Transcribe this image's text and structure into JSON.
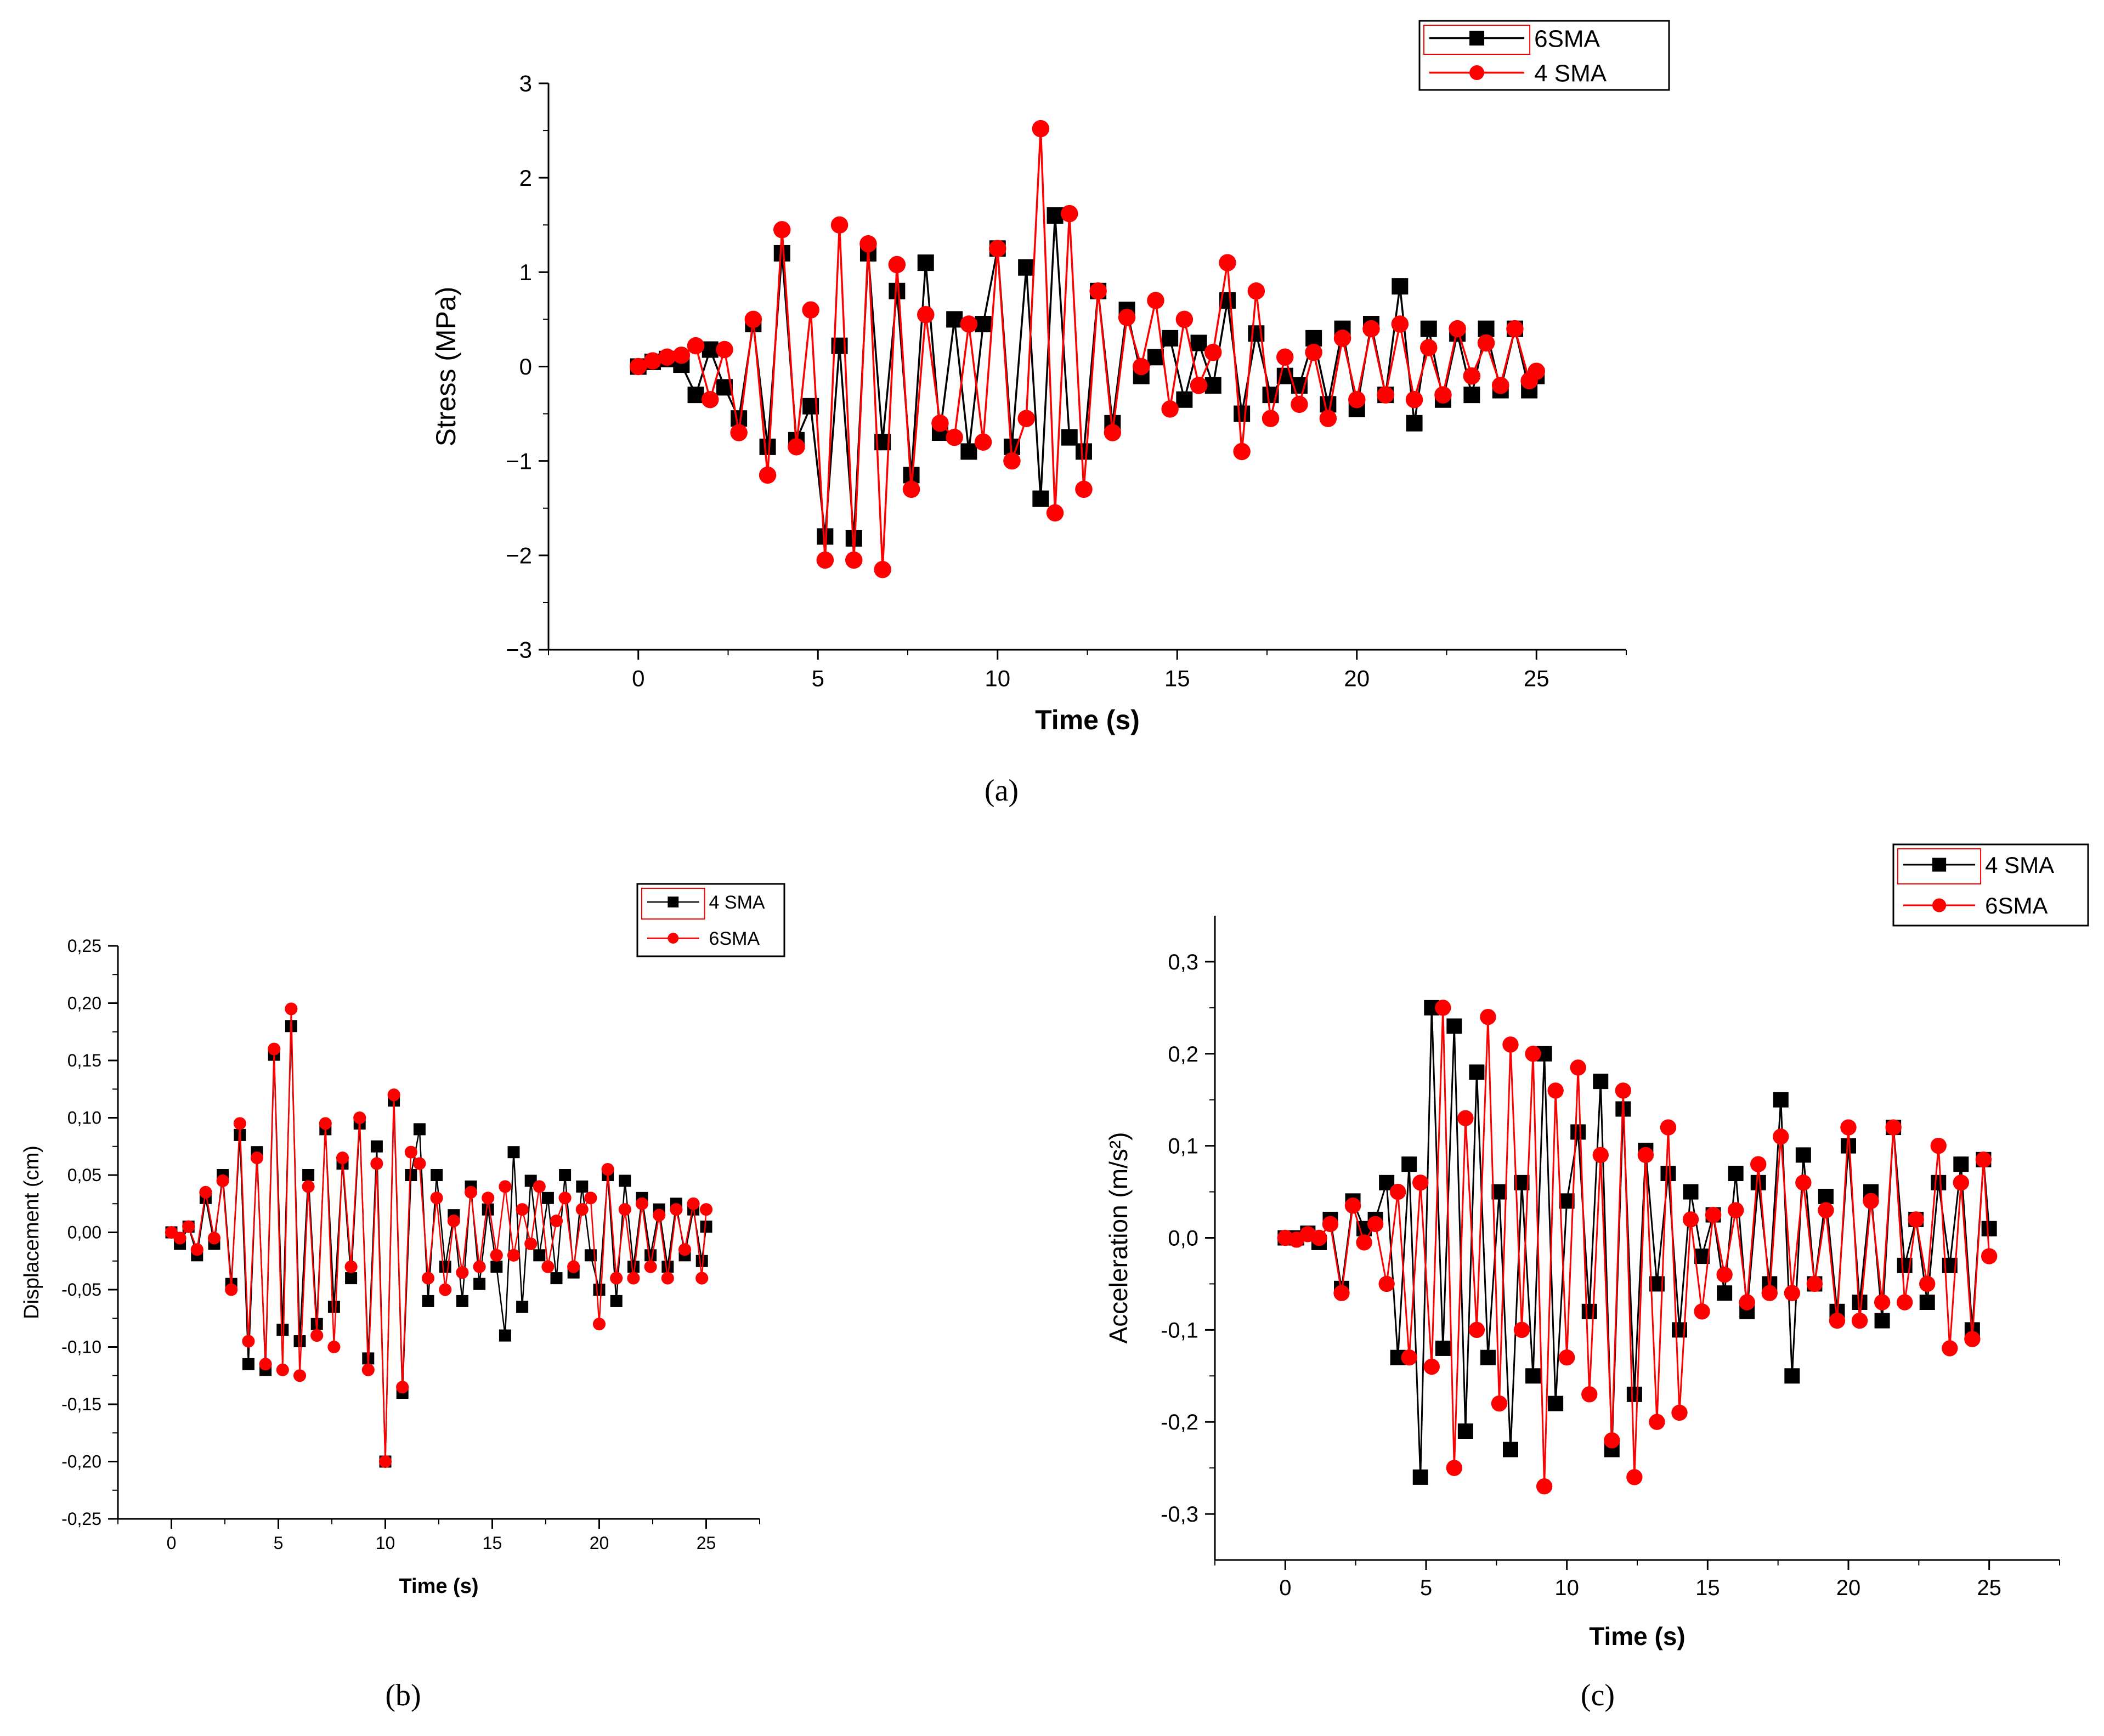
{
  "colors": {
    "series_black": "#000000",
    "series_red": "#ff0000",
    "axis": "#000000",
    "legend_border": "#000000"
  },
  "chart_data": [
    {
      "id": "a",
      "type": "line",
      "panel_label": "(a)",
      "xlabel": "Time (s)",
      "ylabel": "Stress (MPa)",
      "xlim": [
        -2.5,
        27.5
      ],
      "ylim": [
        -3,
        3
      ],
      "xticks": [
        0,
        5,
        10,
        15,
        20,
        25
      ],
      "yticks": [
        -3,
        -2,
        -1,
        0,
        1,
        2,
        3
      ],
      "xtick_labels": [
        "0",
        "5",
        "10",
        "15",
        "20",
        "25"
      ],
      "ytick_labels": [
        "−3",
        "−2",
        "−1",
        "0",
        "1",
        "2",
        "3"
      ],
      "legend": [
        "6SMA",
        "4 SMA"
      ],
      "series": [
        {
          "name": "6SMA",
          "marker": "square",
          "color": "#000000",
          "x": [
            0,
            0.4,
            0.8,
            1.2,
            1.6,
            2.0,
            2.4,
            2.8,
            3.2,
            3.6,
            4.0,
            4.4,
            4.8,
            5.2,
            5.6,
            6.0,
            6.4,
            6.8,
            7.2,
            7.6,
            8.0,
            8.4,
            8.8,
            9.2,
            9.6,
            10.0,
            10.4,
            10.8,
            11.2,
            11.6,
            12.0,
            12.4,
            12.8,
            13.2,
            13.6,
            14.0,
            14.4,
            14.8,
            15.2,
            15.6,
            16.0,
            16.4,
            16.8,
            17.2,
            17.6,
            18.0,
            18.4,
            18.8,
            19.2,
            19.6,
            20.0,
            20.4,
            20.8,
            21.2,
            21.6,
            22.0,
            22.4,
            22.8,
            23.2,
            23.6,
            24.0,
            24.4,
            24.8,
            25.0
          ],
          "y": [
            0.0,
            0.05,
            0.08,
            0.02,
            -0.3,
            0.18,
            -0.22,
            -0.55,
            0.45,
            -0.85,
            1.2,
            -0.78,
            -0.42,
            -1.8,
            0.22,
            -1.82,
            1.2,
            -0.8,
            0.8,
            -1.15,
            1.1,
            -0.7,
            0.5,
            -0.9,
            0.45,
            1.25,
            -0.85,
            1.05,
            -1.4,
            1.6,
            -0.75,
            -0.9,
            0.8,
            -0.6,
            0.6,
            -0.1,
            0.1,
            0.3,
            -0.35,
            0.25,
            -0.2,
            0.7,
            -0.5,
            0.35,
            -0.3,
            -0.1,
            -0.2,
            0.3,
            -0.4,
            0.4,
            -0.45,
            0.45,
            -0.3,
            0.85,
            -0.6,
            0.4,
            -0.35,
            0.35,
            -0.3,
            0.4,
            -0.25,
            0.4,
            -0.25,
            -0.1
          ]
        },
        {
          "name": "4 SMA",
          "marker": "circle",
          "color": "#ff0000",
          "x": [
            0,
            0.4,
            0.8,
            1.2,
            1.6,
            2.0,
            2.4,
            2.8,
            3.2,
            3.6,
            4.0,
            4.4,
            4.8,
            5.2,
            5.6,
            6.0,
            6.4,
            6.8,
            7.2,
            7.6,
            8.0,
            8.4,
            8.8,
            9.2,
            9.6,
            10.0,
            10.4,
            10.8,
            11.2,
            11.6,
            12.0,
            12.4,
            12.8,
            13.2,
            13.6,
            14.0,
            14.4,
            14.8,
            15.2,
            15.6,
            16.0,
            16.4,
            16.8,
            17.2,
            17.6,
            18.0,
            18.4,
            18.8,
            19.2,
            19.6,
            20.0,
            20.4,
            20.8,
            21.2,
            21.6,
            22.0,
            22.4,
            22.8,
            23.2,
            23.6,
            24.0,
            24.4,
            24.8,
            25.0
          ],
          "y": [
            0.0,
            0.06,
            0.1,
            0.12,
            0.22,
            -0.35,
            0.18,
            -0.7,
            0.5,
            -1.15,
            1.45,
            -0.85,
            0.6,
            -2.05,
            1.5,
            -2.05,
            1.3,
            -2.15,
            1.08,
            -1.3,
            0.55,
            -0.6,
            -0.75,
            0.45,
            -0.8,
            1.25,
            -1.0,
            -0.55,
            2.52,
            -1.55,
            1.62,
            -1.3,
            0.8,
            -0.7,
            0.52,
            0.0,
            0.7,
            -0.45,
            0.5,
            -0.2,
            0.15,
            1.1,
            -0.9,
            0.8,
            -0.55,
            0.1,
            -0.4,
            0.15,
            -0.55,
            0.3,
            -0.35,
            0.4,
            -0.3,
            0.45,
            -0.35,
            0.2,
            -0.3,
            0.4,
            -0.1,
            0.25,
            -0.2,
            0.4,
            -0.15,
            -0.05
          ]
        }
      ]
    },
    {
      "id": "b",
      "type": "line",
      "panel_label": "(b)",
      "xlabel": "Time (s)",
      "ylabel": "Displacement (cm)",
      "xlim": [
        -2.5,
        27.5
      ],
      "ylim": [
        -0.25,
        0.25
      ],
      "xticks": [
        0,
        5,
        10,
        15,
        20,
        25
      ],
      "yticks": [
        -0.25,
        -0.2,
        -0.15,
        -0.1,
        -0.05,
        0,
        0.05,
        0.1,
        0.15,
        0.2,
        0.25
      ],
      "xtick_labels": [
        "0",
        "5",
        "10",
        "15",
        "20",
        "25"
      ],
      "ytick_labels": [
        "-0,25",
        "-0,20",
        "-0,15",
        "-0,10",
        "-0,05",
        "0,00",
        "0,05",
        "0,10",
        "0,15",
        "0,20",
        "0,25"
      ],
      "legend": [
        "4 SMA",
        "6SMA"
      ],
      "series": [
        {
          "name": "4 SMA",
          "marker": "square",
          "color": "#000000",
          "x": [
            0,
            0.4,
            0.8,
            1.2,
            1.6,
            2.0,
            2.4,
            2.8,
            3.2,
            3.6,
            4.0,
            4.4,
            4.8,
            5.2,
            5.6,
            6.0,
            6.4,
            6.8,
            7.2,
            7.6,
            8.0,
            8.4,
            8.8,
            9.2,
            9.6,
            10.0,
            10.4,
            10.8,
            11.2,
            11.6,
            12.0,
            12.4,
            12.8,
            13.2,
            13.6,
            14.0,
            14.4,
            14.8,
            15.2,
            15.6,
            16.0,
            16.4,
            16.8,
            17.2,
            17.6,
            18.0,
            18.4,
            18.8,
            19.2,
            19.6,
            20.0,
            20.4,
            20.8,
            21.2,
            21.6,
            22.0,
            22.4,
            22.8,
            23.2,
            23.6,
            24.0,
            24.4,
            24.8,
            25.0
          ],
          "y": [
            0.0,
            -0.01,
            0.005,
            -0.02,
            0.03,
            -0.01,
            0.05,
            -0.045,
            0.085,
            -0.115,
            0.07,
            -0.12,
            0.155,
            -0.085,
            0.18,
            -0.095,
            0.05,
            -0.08,
            0.09,
            -0.065,
            0.06,
            -0.04,
            0.095,
            -0.11,
            0.075,
            -0.2,
            0.115,
            -0.14,
            0.05,
            0.09,
            -0.06,
            0.05,
            -0.03,
            0.015,
            -0.06,
            0.04,
            -0.045,
            0.02,
            -0.03,
            -0.09,
            0.07,
            -0.065,
            0.045,
            -0.02,
            0.03,
            -0.04,
            0.05,
            -0.035,
            0.04,
            -0.02,
            -0.05,
            0.05,
            -0.06,
            0.045,
            -0.03,
            0.03,
            -0.02,
            0.02,
            -0.03,
            0.025,
            -0.02,
            0.02,
            -0.025,
            0.005
          ]
        },
        {
          "name": "6SMA",
          "marker": "circle",
          "color": "#ff0000",
          "x": [
            0,
            0.4,
            0.8,
            1.2,
            1.6,
            2.0,
            2.4,
            2.8,
            3.2,
            3.6,
            4.0,
            4.4,
            4.8,
            5.2,
            5.6,
            6.0,
            6.4,
            6.8,
            7.2,
            7.6,
            8.0,
            8.4,
            8.8,
            9.2,
            9.6,
            10.0,
            10.4,
            10.8,
            11.2,
            11.6,
            12.0,
            12.4,
            12.8,
            13.2,
            13.6,
            14.0,
            14.4,
            14.8,
            15.2,
            15.6,
            16.0,
            16.4,
            16.8,
            17.2,
            17.6,
            18.0,
            18.4,
            18.8,
            19.2,
            19.6,
            20.0,
            20.4,
            20.8,
            21.2,
            21.6,
            22.0,
            22.4,
            22.8,
            23.2,
            23.6,
            24.0,
            24.4,
            24.8,
            25.0
          ],
          "y": [
            0.0,
            -0.005,
            0.005,
            -0.015,
            0.035,
            -0.005,
            0.045,
            -0.05,
            0.095,
            -0.095,
            0.065,
            -0.115,
            0.16,
            -0.12,
            0.195,
            -0.125,
            0.04,
            -0.09,
            0.095,
            -0.1,
            0.065,
            -0.03,
            0.1,
            -0.12,
            0.06,
            -0.2,
            0.12,
            -0.135,
            0.07,
            0.06,
            -0.04,
            0.03,
            -0.05,
            0.01,
            -0.035,
            0.035,
            -0.03,
            0.03,
            -0.02,
            0.04,
            -0.02,
            0.02,
            -0.01,
            0.04,
            -0.03,
            0.01,
            0.03,
            -0.03,
            0.02,
            0.03,
            -0.08,
            0.055,
            -0.04,
            0.02,
            -0.04,
            0.025,
            -0.03,
            0.015,
            -0.04,
            0.02,
            -0.015,
            0.025,
            -0.04,
            0.02
          ]
        }
      ]
    },
    {
      "id": "c",
      "type": "line",
      "panel_label": "(c)",
      "xlabel": "Time (s)",
      "ylabel": "Acceleration (m/s²)",
      "xlim": [
        -2.5,
        27.5
      ],
      "ylim": [
        -0.35,
        0.35
      ],
      "xticks": [
        0,
        5,
        10,
        15,
        20,
        25
      ],
      "yticks": [
        -0.3,
        -0.2,
        -0.1,
        0,
        0.1,
        0.2,
        0.3
      ],
      "xtick_labels": [
        "0",
        "5",
        "10",
        "15",
        "20",
        "25"
      ],
      "ytick_labels": [
        "-0,3",
        "-0,2",
        "-0,1",
        "0,0",
        "0,1",
        "0,2",
        "0,3"
      ],
      "legend": [
        "4 SMA",
        "6SMA"
      ],
      "series": [
        {
          "name": "4 SMA",
          "marker": "square",
          "color": "#000000",
          "x": [
            0,
            0.4,
            0.8,
            1.2,
            1.6,
            2.0,
            2.4,
            2.8,
            3.2,
            3.6,
            4.0,
            4.4,
            4.8,
            5.2,
            5.6,
            6.0,
            6.4,
            6.8,
            7.2,
            7.6,
            8.0,
            8.4,
            8.8,
            9.2,
            9.6,
            10.0,
            10.4,
            10.8,
            11.2,
            11.6,
            12.0,
            12.4,
            12.8,
            13.2,
            13.6,
            14.0,
            14.4,
            14.8,
            15.2,
            15.6,
            16.0,
            16.4,
            16.8,
            17.2,
            17.6,
            18.0,
            18.4,
            18.8,
            19.2,
            19.6,
            20.0,
            20.4,
            20.8,
            21.2,
            21.6,
            22.0,
            22.4,
            22.8,
            23.2,
            23.6,
            24.0,
            24.4,
            24.8,
            25.0
          ],
          "y": [
            0.0,
            0.0,
            0.005,
            -0.005,
            0.02,
            -0.055,
            0.04,
            0.01,
            0.02,
            0.06,
            -0.13,
            0.08,
            -0.26,
            0.25,
            -0.12,
            0.23,
            -0.21,
            0.18,
            -0.13,
            0.05,
            -0.23,
            0.06,
            -0.15,
            0.2,
            -0.18,
            0.04,
            0.115,
            -0.08,
            0.17,
            -0.23,
            0.14,
            -0.17,
            0.095,
            -0.05,
            0.07,
            -0.1,
            0.05,
            -0.02,
            0.025,
            -0.06,
            0.07,
            -0.08,
            0.06,
            -0.05,
            0.15,
            -0.15,
            0.09,
            -0.05,
            0.045,
            -0.08,
            0.1,
            -0.07,
            0.05,
            -0.09,
            0.12,
            -0.03,
            0.02,
            -0.07,
            0.06,
            -0.03,
            0.08,
            -0.1,
            0.085,
            0.01
          ]
        },
        {
          "name": "6SMA",
          "marker": "circle",
          "color": "#ff0000",
          "x": [
            0,
            0.4,
            0.8,
            1.2,
            1.6,
            2.0,
            2.4,
            2.8,
            3.2,
            3.6,
            4.0,
            4.4,
            4.8,
            5.2,
            5.6,
            6.0,
            6.4,
            6.8,
            7.2,
            7.6,
            8.0,
            8.4,
            8.8,
            9.2,
            9.6,
            10.0,
            10.4,
            10.8,
            11.2,
            11.6,
            12.0,
            12.4,
            12.8,
            13.2,
            13.6,
            14.0,
            14.4,
            14.8,
            15.2,
            15.6,
            16.0,
            16.4,
            16.8,
            17.2,
            17.6,
            18.0,
            18.4,
            18.8,
            19.2,
            19.6,
            20.0,
            20.4,
            20.8,
            21.2,
            21.6,
            22.0,
            22.4,
            22.8,
            23.2,
            23.6,
            24.0,
            24.4,
            24.8,
            25.0
          ],
          "y": [
            0.0,
            -0.002,
            0.004,
            0.0,
            0.015,
            -0.06,
            0.035,
            -0.005,
            0.015,
            -0.05,
            0.05,
            -0.13,
            0.06,
            -0.14,
            0.25,
            -0.25,
            0.13,
            -0.1,
            0.24,
            -0.18,
            0.21,
            -0.1,
            0.2,
            -0.27,
            0.16,
            -0.13,
            0.185,
            -0.17,
            0.09,
            -0.22,
            0.16,
            -0.26,
            0.09,
            -0.2,
            0.12,
            -0.19,
            0.02,
            -0.08,
            0.025,
            -0.04,
            0.03,
            -0.07,
            0.08,
            -0.06,
            0.11,
            -0.06,
            0.06,
            -0.05,
            0.03,
            -0.09,
            0.12,
            -0.09,
            0.04,
            -0.07,
            0.12,
            -0.07,
            0.02,
            -0.05,
            0.1,
            -0.12,
            0.06,
            -0.11,
            0.085,
            -0.02
          ]
        }
      ]
    }
  ]
}
